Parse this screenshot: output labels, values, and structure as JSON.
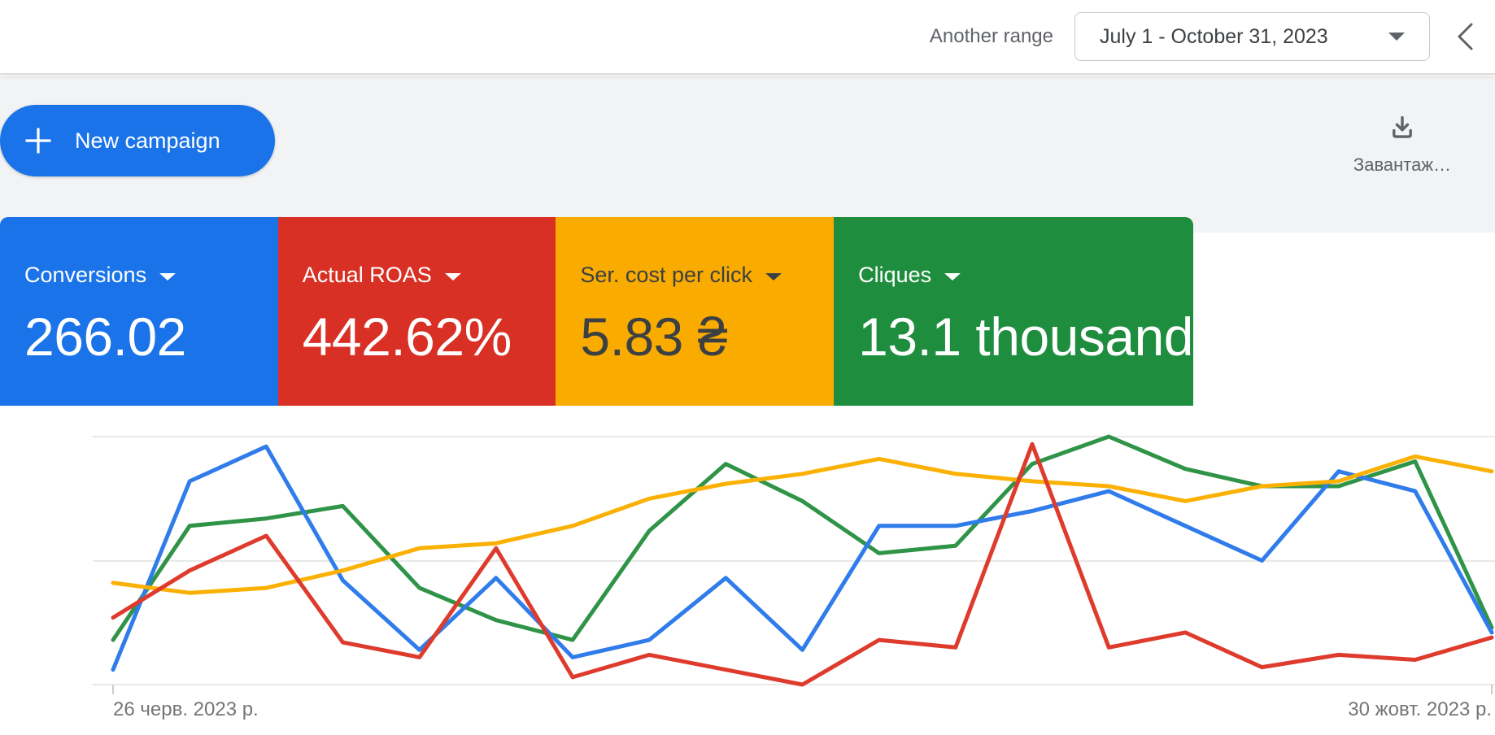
{
  "topbar": {
    "range_label": "Another range",
    "date_range": "July 1 - October 31, 2023"
  },
  "toolbar": {
    "new_campaign": "New campaign",
    "download_label": "Завантаж…",
    "new_campaign_color": "#1a73e8"
  },
  "scorecards": [
    {
      "label": "Conversions",
      "value": "266.02",
      "bg": "#1a73e8",
      "fg": "#ffffff"
    },
    {
      "label": "Actual ROAS",
      "value": "442.62%",
      "bg": "#d93025",
      "fg": "#ffffff"
    },
    {
      "label": "Ser. cost per click",
      "value": "5.83 ₴",
      "bg": "#f9ab00",
      "fg": "#3c4043"
    },
    {
      "label": "Cliques",
      "value": "13.1 thousand",
      "bg": "#1e8e3e",
      "fg": "#ffffff"
    }
  ],
  "chart_data": {
    "type": "line",
    "title": "",
    "x_axis_labels": [
      "26 черв. 2023 р.",
      "30 жовт. 2023 р."
    ],
    "points_per_series": 19,
    "x_interval": "weekly",
    "ylim": [
      0,
      100
    ],
    "y_axis_visible": false,
    "grid": "3 horizontal gridlines, no vertical gridlines",
    "legend_position": "none (colors match scorecards)",
    "draw_order": [
      "cliques",
      "conversions",
      "ser-cost-per-click",
      "actual-roas"
    ],
    "series": [
      {
        "id": "conversions",
        "name": "Conversions",
        "color": "#2f7cea",
        "values": [
          6,
          82,
          96,
          42,
          14,
          43,
          11,
          18,
          43,
          14,
          64,
          64,
          70,
          78,
          64,
          50,
          86,
          78,
          21
        ]
      },
      {
        "id": "actual-roas",
        "name": "Actual ROAS",
        "color": "#de3b2d",
        "values": [
          27,
          46,
          60,
          17,
          11,
          55,
          3,
          12,
          6,
          0,
          18,
          15,
          97,
          15,
          21,
          7,
          12,
          10,
          19
        ]
      },
      {
        "id": "ser-cost-per-click",
        "name": "Ser. cost per click",
        "color": "#fbb104",
        "values": [
          41,
          37,
          39,
          46,
          55,
          57,
          64,
          75,
          81,
          85,
          91,
          85,
          82,
          80,
          74,
          80,
          82,
          92,
          86
        ]
      },
      {
        "id": "cliques",
        "name": "Cliques",
        "color": "#2f9448",
        "values": [
          18,
          64,
          67,
          72,
          39,
          26,
          18,
          62,
          89,
          74,
          53,
          56,
          89,
          100,
          87,
          80,
          80,
          90,
          23
        ]
      }
    ]
  }
}
